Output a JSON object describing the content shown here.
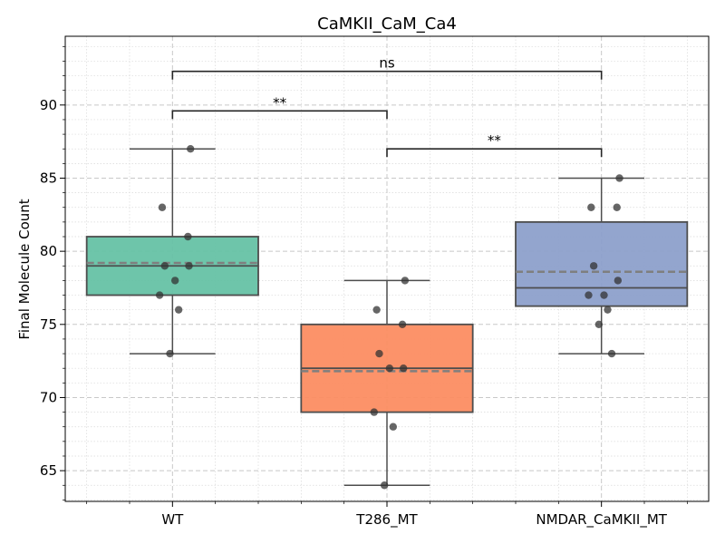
{
  "chart_data": {
    "type": "box",
    "title": "CaMKII_CaM_Ca4",
    "xlabel": "",
    "ylabel": "Final Molecule Count",
    "categories": [
      "WT",
      "T286_MT",
      "NMDAR_CaMKII_MT"
    ],
    "ylim": [
      62.9,
      94.7
    ],
    "yticks": [
      65,
      70,
      75,
      80,
      85,
      90
    ],
    "grid": true,
    "colors": {
      "WT": "#66c2a5",
      "T286_MT": "#fc8d62",
      "NMDAR_CaMKII_MT": "#8da0cb",
      "median_line": "#4d4d4d",
      "mean_line": "#7f7f7f",
      "points": "#333333"
    },
    "boxes": [
      {
        "category": "WT",
        "whisker_low": 73,
        "q1": 77,
        "median": 79,
        "mean": 79.2,
        "q3": 81,
        "whisker_high": 87,
        "points": [
          87,
          83,
          81,
          79,
          79,
          78,
          77,
          76,
          73
        ]
      },
      {
        "category": "T286_MT",
        "whisker_low": 64,
        "q1": 69,
        "median": 72,
        "mean": 71.8,
        "q3": 75,
        "whisker_high": 78,
        "points": [
          78,
          76,
          75,
          73,
          72,
          72,
          69,
          68,
          64
        ]
      },
      {
        "category": "NMDAR_CaMKII_MT",
        "whisker_low": 73,
        "q1": 76.25,
        "median": 77.5,
        "mean": 78.6,
        "q3": 82,
        "whisker_high": 85,
        "points": [
          85,
          83,
          83,
          79,
          78,
          77,
          77,
          76,
          75,
          73
        ]
      }
    ],
    "significance": [
      {
        "from": "WT",
        "to": "NMDAR_CaMKII_MT",
        "label": "ns",
        "y": 92.3
      },
      {
        "from": "WT",
        "to": "T286_MT",
        "label": "**",
        "y": 89.6
      },
      {
        "from": "T286_MT",
        "to": "NMDAR_CaMKII_MT",
        "label": "**",
        "y": 87
      }
    ]
  }
}
